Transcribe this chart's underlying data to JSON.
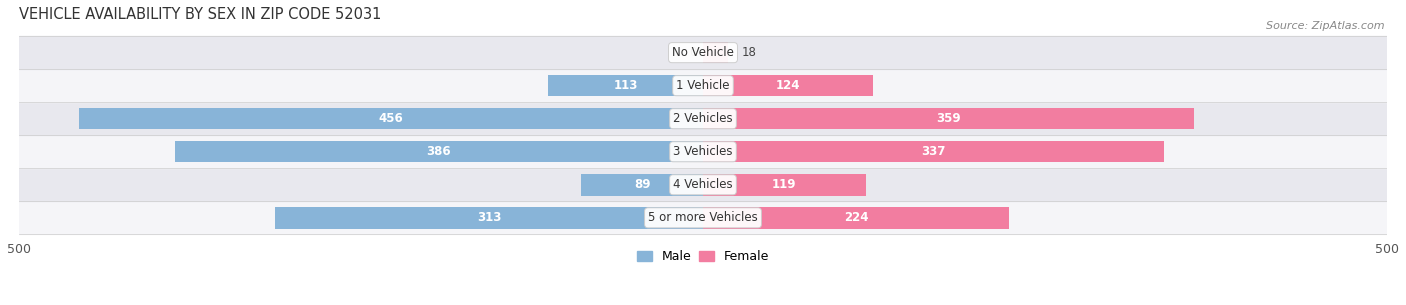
{
  "title": "VEHICLE AVAILABILITY BY SEX IN ZIP CODE 52031",
  "source": "Source: ZipAtlas.com",
  "categories": [
    "No Vehicle",
    "1 Vehicle",
    "2 Vehicles",
    "3 Vehicles",
    "4 Vehicles",
    "5 or more Vehicles"
  ],
  "male_values": [
    0,
    113,
    456,
    386,
    89,
    313
  ],
  "female_values": [
    18,
    124,
    359,
    337,
    119,
    224
  ],
  "male_color": "#88b4d8",
  "female_color": "#f27da0",
  "row_bg_light": "#f5f5f8",
  "row_bg_dark": "#e8e8ee",
  "background_color": "#ffffff",
  "xlim": [
    -500,
    500
  ],
  "legend_male": "Male",
  "legend_female": "Female",
  "bar_height": 0.65,
  "label_fontsize": 8.5,
  "title_fontsize": 10.5,
  "source_fontsize": 8,
  "inner_label_threshold": 80
}
